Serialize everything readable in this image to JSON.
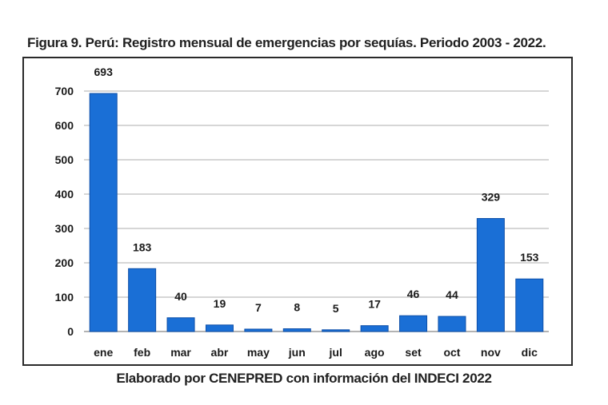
{
  "title": "Figura 9. Perú: Registro mensual de emergencias por sequías. Periodo 2003 - 2022.",
  "source_note": "Elaborado por CENEPRED con información del INDECI 2022",
  "colors": {
    "bar": "#1a6fd6",
    "grid": "#c8c8c8",
    "axis": "#9a9a9a"
  },
  "chart_data": {
    "type": "bar",
    "title": "Figura 9. Perú: Registro mensual de emergencias por sequías. Periodo 2003 - 2022.",
    "xlabel": "",
    "ylabel": "",
    "ylim": [
      0,
      700
    ],
    "yticks": [
      0,
      100,
      200,
      300,
      400,
      500,
      600,
      700
    ],
    "grid": true,
    "categories": [
      "ene",
      "feb",
      "mar",
      "abr",
      "may",
      "jun",
      "jul",
      "ago",
      "set",
      "oct",
      "nov",
      "dic"
    ],
    "values": [
      693,
      183,
      40,
      19,
      7,
      8,
      5,
      17,
      46,
      44,
      329,
      153
    ]
  }
}
